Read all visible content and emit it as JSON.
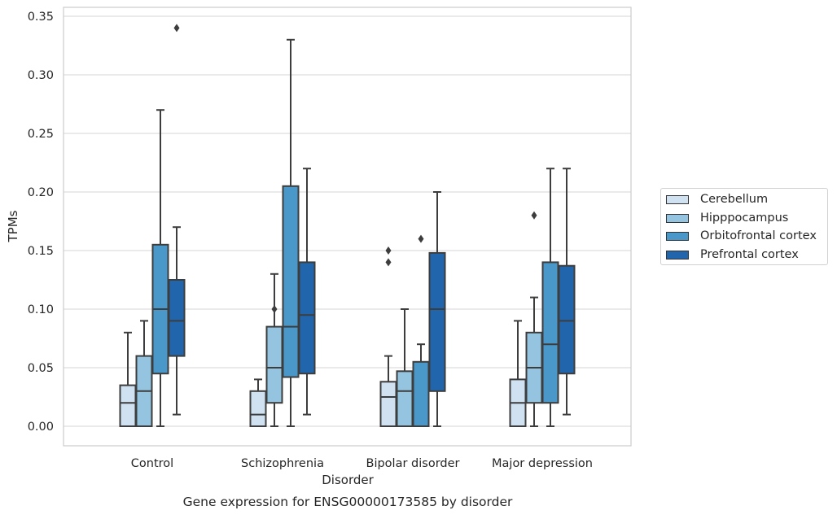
{
  "chart_data": {
    "type": "box",
    "title": "Gene expression for ENSG00000173585 by disorder",
    "xlabel": "Disorder",
    "ylabel": "TPMs",
    "ylim": [
      -0.017,
      0.356
    ],
    "yticks": [
      "0.00",
      "0.05",
      "0.10",
      "0.15",
      "0.20",
      "0.25",
      "0.30",
      "0.35"
    ],
    "grid": "horizontal",
    "legend_position": "right",
    "categories": [
      "Control",
      "Schizophrenia",
      "Bipolar disorder",
      "Major depression"
    ],
    "series": [
      {
        "name": "Cerebellum",
        "color": "#d0e1f2",
        "boxes": [
          {
            "whislo": 0.0,
            "q1": 0.0,
            "med": 0.02,
            "q3": 0.035,
            "whishi": 0.08,
            "fliers": []
          },
          {
            "whislo": 0.0,
            "q1": 0.0,
            "med": 0.01,
            "q3": 0.03,
            "whishi": 0.04,
            "fliers": []
          },
          {
            "whislo": 0.0,
            "q1": 0.0,
            "med": 0.025,
            "q3": 0.038,
            "whishi": 0.06,
            "fliers": [
              0.14,
              0.15
            ]
          },
          {
            "whislo": 0.0,
            "q1": 0.0,
            "med": 0.02,
            "q3": 0.04,
            "whishi": 0.09,
            "fliers": []
          }
        ]
      },
      {
        "name": "Hipppocampus",
        "color": "#94c4df",
        "boxes": [
          {
            "whislo": 0.0,
            "q1": 0.0,
            "med": 0.03,
            "q3": 0.06,
            "whishi": 0.09,
            "fliers": []
          },
          {
            "whislo": 0.0,
            "q1": 0.02,
            "med": 0.05,
            "q3": 0.085,
            "whishi": 0.13,
            "fliers": [
              0.1
            ]
          },
          {
            "whislo": 0.0,
            "q1": 0.0,
            "med": 0.03,
            "q3": 0.047,
            "whishi": 0.1,
            "fliers": []
          },
          {
            "whislo": 0.0,
            "q1": 0.02,
            "med": 0.05,
            "q3": 0.08,
            "whishi": 0.11,
            "fliers": [
              0.18
            ]
          }
        ]
      },
      {
        "name": "Orbitofrontal cortex",
        "color": "#4a98c9",
        "boxes": [
          {
            "whislo": 0.0,
            "q1": 0.045,
            "med": 0.1,
            "q3": 0.155,
            "whishi": 0.27,
            "fliers": []
          },
          {
            "whislo": 0.0,
            "q1": 0.042,
            "med": 0.085,
            "q3": 0.205,
            "whishi": 0.33,
            "fliers": []
          },
          {
            "whislo": 0.0,
            "q1": 0.0,
            "med": 0.0,
            "q3": 0.055,
            "whishi": 0.07,
            "fliers": [
              0.16
            ]
          },
          {
            "whislo": 0.0,
            "q1": 0.02,
            "med": 0.07,
            "q3": 0.14,
            "whishi": 0.22,
            "fliers": []
          }
        ]
      },
      {
        "name": "Prefrontal cortex",
        "color": "#2166ac",
        "boxes": [
          {
            "whislo": 0.01,
            "q1": 0.06,
            "med": 0.09,
            "q3": 0.125,
            "whishi": 0.17,
            "fliers": [
              0.34
            ]
          },
          {
            "whislo": 0.01,
            "q1": 0.045,
            "med": 0.095,
            "q3": 0.14,
            "whishi": 0.22,
            "fliers": []
          },
          {
            "whislo": 0.0,
            "q1": 0.03,
            "med": 0.1,
            "q3": 0.148,
            "whishi": 0.2,
            "fliers": []
          },
          {
            "whislo": 0.01,
            "q1": 0.045,
            "med": 0.09,
            "q3": 0.137,
            "whishi": 0.22,
            "fliers": []
          }
        ]
      }
    ]
  }
}
